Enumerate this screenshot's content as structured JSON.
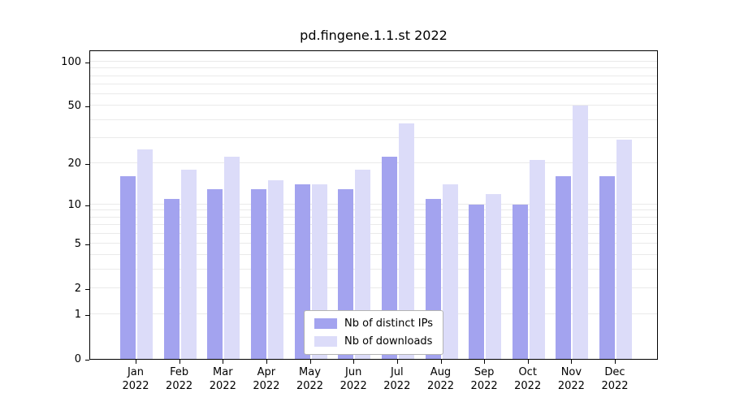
{
  "chart_data": {
    "type": "bar",
    "title": "pd.fingene.1.1.st 2022",
    "scale": "log1p",
    "x_year": "2022",
    "categories": [
      "Jan",
      "Feb",
      "Mar",
      "Apr",
      "May",
      "Jun",
      "Jul",
      "Aug",
      "Sep",
      "Oct",
      "Nov",
      "Dec"
    ],
    "series": [
      {
        "name": "Nb of distinct IPs",
        "color": "#a3a3ef",
        "values": [
          16,
          11,
          13,
          13,
          14,
          13,
          22,
          11,
          10,
          10,
          16,
          16
        ]
      },
      {
        "name": "Nb of downloads",
        "color": "#dcdcf9",
        "values": [
          25,
          18,
          22,
          15,
          14,
          18,
          38,
          14,
          12,
          21,
          50,
          29
        ]
      }
    ],
    "yticks": [
      0,
      1,
      2,
      5,
      10,
      20,
      50,
      100
    ],
    "gridlines": [
      1,
      2,
      3,
      4,
      5,
      6,
      7,
      8,
      9,
      10,
      20,
      30,
      40,
      50,
      60,
      70,
      80,
      90,
      100
    ],
    "ylim": [
      0,
      100
    ],
    "legend_position": "lower center",
    "grid": "on"
  }
}
